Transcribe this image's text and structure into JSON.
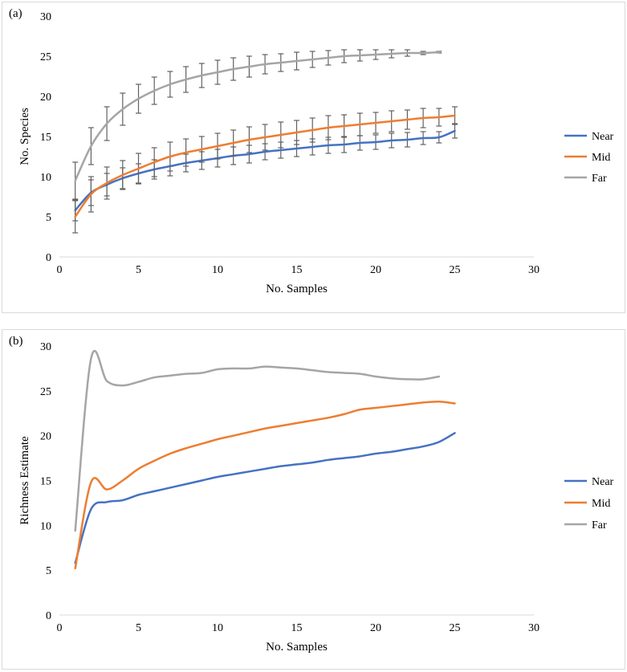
{
  "chart_data": [
    {
      "panel_label": "(a)",
      "type": "line",
      "xlabel": "No. Samples",
      "ylabel": "No. Species",
      "xlim": [
        0,
        30
      ],
      "ylim": [
        0,
        30
      ],
      "xticks": [
        0,
        5,
        10,
        15,
        20,
        25,
        30
      ],
      "yticks": [
        0,
        5,
        10,
        15,
        20,
        25,
        30
      ],
      "grid": false,
      "legend": "right",
      "error_bars": true,
      "series": [
        {
          "name": "Near",
          "color": "#4472C4",
          "x": [
            1,
            2,
            3,
            4,
            5,
            6,
            7,
            8,
            9,
            10,
            11,
            12,
            13,
            14,
            15,
            16,
            17,
            18,
            19,
            20,
            21,
            22,
            23,
            24,
            25
          ],
          "y": [
            5.8,
            8.0,
            9.0,
            9.8,
            10.4,
            10.9,
            11.3,
            11.7,
            12.0,
            12.3,
            12.6,
            12.8,
            13.1,
            13.3,
            13.5,
            13.7,
            13.9,
            14.0,
            14.2,
            14.3,
            14.5,
            14.6,
            14.8,
            14.9,
            15.7
          ],
          "err": [
            1.3,
            1.6,
            1.4,
            1.3,
            1.2,
            1.2,
            1.2,
            1.1,
            1.1,
            1.1,
            1.1,
            1.1,
            1.0,
            1.0,
            1.0,
            1.0,
            1.0,
            1.0,
            0.9,
            0.9,
            0.9,
            0.9,
            0.8,
            0.7,
            0.9
          ]
        },
        {
          "name": "Mid",
          "color": "#ED7D31",
          "x": [
            1,
            2,
            3,
            4,
            5,
            6,
            7,
            8,
            9,
            10,
            11,
            12,
            13,
            14,
            15,
            16,
            17,
            18,
            19,
            20,
            21,
            22,
            23,
            24,
            25
          ],
          "y": [
            5.0,
            7.8,
            9.2,
            10.2,
            11.0,
            11.8,
            12.5,
            13.0,
            13.4,
            13.8,
            14.2,
            14.6,
            14.9,
            15.2,
            15.5,
            15.8,
            16.1,
            16.3,
            16.5,
            16.7,
            16.9,
            17.1,
            17.3,
            17.4,
            17.6
          ],
          "err": [
            2.0,
            2.2,
            2.0,
            1.8,
            1.9,
            1.8,
            1.8,
            1.7,
            1.6,
            1.6,
            1.6,
            1.6,
            1.6,
            1.6,
            1.5,
            1.5,
            1.5,
            1.4,
            1.4,
            1.3,
            1.3,
            1.2,
            1.2,
            1.1,
            1.1
          ]
        },
        {
          "name": "Far",
          "color": "#A5A5A5",
          "x": [
            1,
            2,
            3,
            4,
            5,
            6,
            7,
            8,
            9,
            10,
            11,
            12,
            13,
            14,
            15,
            16,
            17,
            18,
            19,
            20,
            21,
            22,
            23,
            24
          ],
          "y": [
            9.5,
            13.8,
            16.6,
            18.4,
            19.7,
            20.7,
            21.5,
            22.1,
            22.6,
            23.0,
            23.4,
            23.7,
            24.0,
            24.2,
            24.4,
            24.6,
            24.8,
            25.0,
            25.1,
            25.2,
            25.3,
            25.4,
            25.4,
            25.5
          ],
          "err": [
            2.3,
            2.3,
            2.1,
            2.0,
            1.8,
            1.7,
            1.6,
            1.6,
            1.5,
            1.5,
            1.4,
            1.3,
            1.2,
            1.1,
            1.1,
            1.0,
            0.9,
            0.8,
            0.7,
            0.6,
            0.5,
            0.4,
            0.2,
            0.1
          ]
        }
      ]
    },
    {
      "panel_label": "(b)",
      "type": "line",
      "xlabel": "No. Samples",
      "ylabel": "Richness Estimate",
      "xlim": [
        0,
        30
      ],
      "ylim": [
        0,
        30
      ],
      "xticks": [
        0,
        5,
        10,
        15,
        20,
        25,
        30
      ],
      "yticks": [
        0,
        5,
        10,
        15,
        20,
        25,
        30
      ],
      "grid": false,
      "legend": "right",
      "error_bars": false,
      "series": [
        {
          "name": "Near",
          "color": "#4472C4",
          "x": [
            1,
            2,
            3,
            4,
            5,
            6,
            7,
            8,
            9,
            10,
            11,
            12,
            13,
            14,
            15,
            16,
            17,
            18,
            19,
            20,
            21,
            22,
            23,
            24,
            25
          ],
          "y": [
            5.8,
            11.8,
            12.6,
            12.8,
            13.4,
            13.8,
            14.2,
            14.6,
            15.0,
            15.4,
            15.7,
            16.0,
            16.3,
            16.6,
            16.8,
            17.0,
            17.3,
            17.5,
            17.7,
            18.0,
            18.2,
            18.5,
            18.8,
            19.3,
            20.3
          ]
        },
        {
          "name": "Mid",
          "color": "#ED7D31",
          "x": [
            1,
            2,
            3,
            4,
            5,
            6,
            7,
            8,
            9,
            10,
            11,
            12,
            13,
            14,
            15,
            16,
            17,
            18,
            19,
            20,
            21,
            22,
            23,
            24,
            25
          ],
          "y": [
            5.2,
            14.8,
            14.0,
            15.0,
            16.3,
            17.2,
            18.0,
            18.6,
            19.1,
            19.6,
            20.0,
            20.4,
            20.8,
            21.1,
            21.4,
            21.7,
            22.0,
            22.4,
            22.9,
            23.1,
            23.3,
            23.5,
            23.7,
            23.8,
            23.6
          ]
        },
        {
          "name": "Far",
          "color": "#A5A5A5",
          "x": [
            1,
            2,
            3,
            4,
            5,
            6,
            7,
            8,
            9,
            10,
            11,
            12,
            13,
            14,
            15,
            16,
            17,
            18,
            19,
            20,
            21,
            22,
            23,
            24
          ],
          "y": [
            9.4,
            28.6,
            26.1,
            25.6,
            26.0,
            26.5,
            26.7,
            26.9,
            27.0,
            27.4,
            27.5,
            27.5,
            27.7,
            27.6,
            27.5,
            27.3,
            27.1,
            27.0,
            26.9,
            26.6,
            26.4,
            26.3,
            26.3,
            26.6
          ]
        }
      ]
    }
  ]
}
